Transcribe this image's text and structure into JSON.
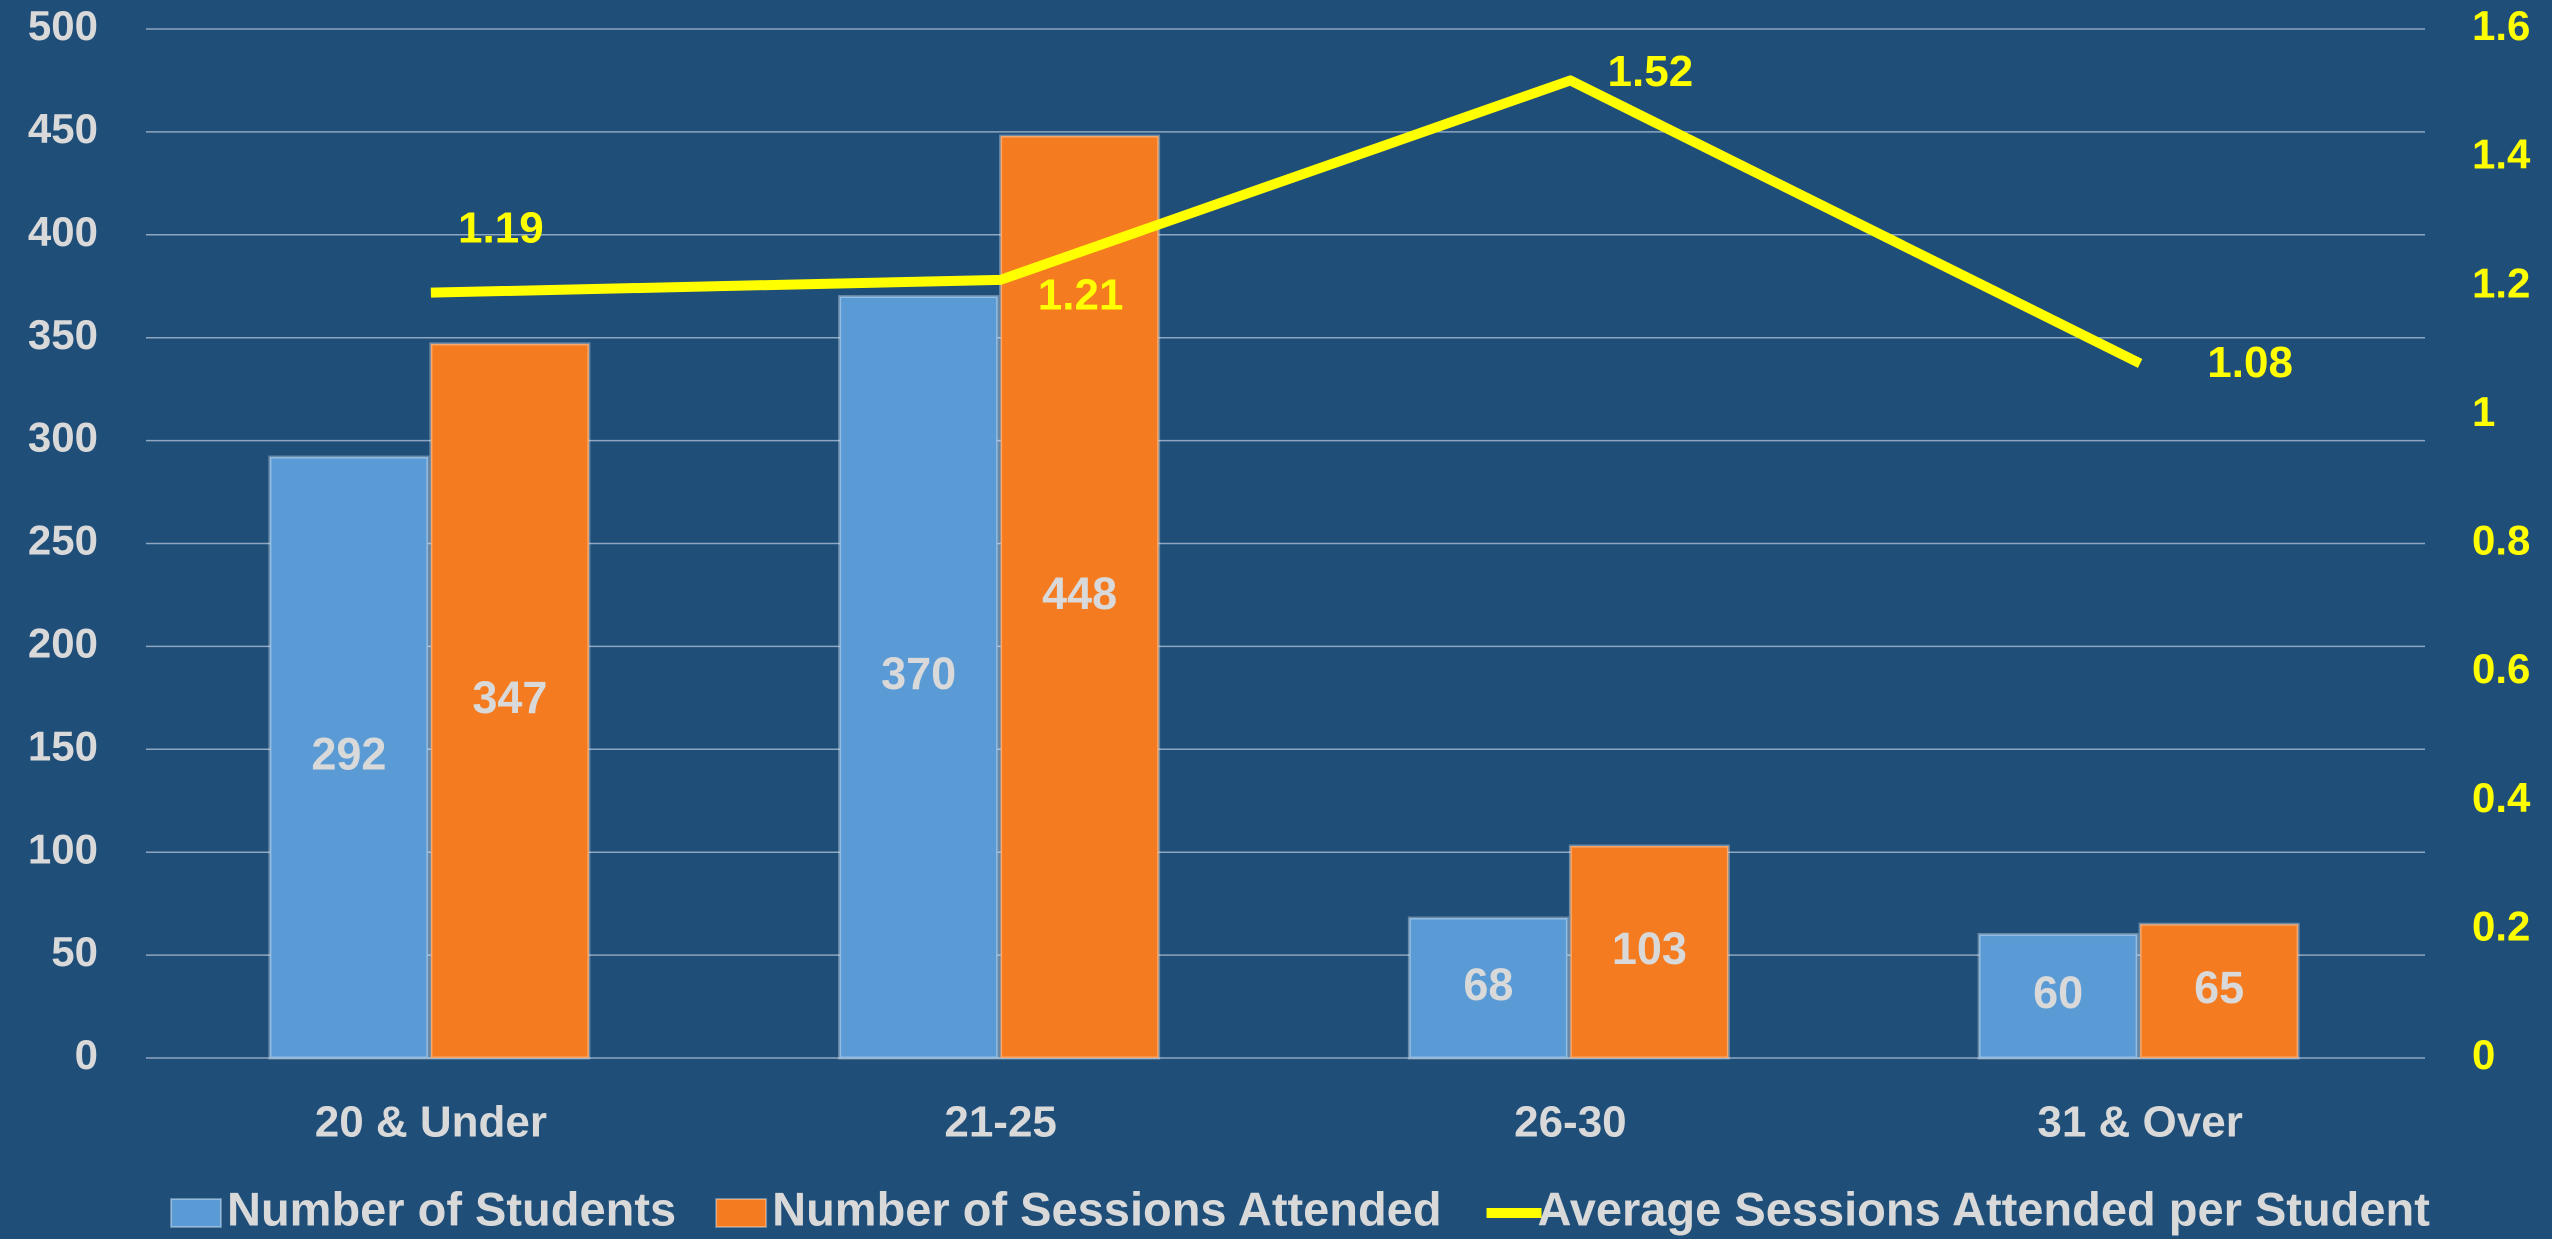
{
  "chart_data": {
    "type": "bar",
    "categories": [
      "20 & Under",
      "21-25",
      "26-30",
      "31 & Over"
    ],
    "series": [
      {
        "name": "Number of Students",
        "color": "#5b9bd5",
        "values": [
          292,
          370,
          68,
          60
        ]
      },
      {
        "name": "Number of Sessions Attended",
        "color": "#f47b20",
        "values": [
          347,
          448,
          103,
          65
        ]
      },
      {
        "name": "Average Sessions Attended per Student",
        "color": "#ffff00",
        "type": "line",
        "axis": "y2",
        "values": [
          1.19,
          1.21,
          1.52,
          1.08
        ]
      }
    ],
    "ylim": [
      0,
      500
    ],
    "yticks": [
      0,
      50,
      100,
      150,
      200,
      250,
      300,
      350,
      400,
      450,
      500
    ],
    "y2lim": [
      0,
      1.6
    ],
    "y2ticks": [
      0,
      0.2,
      0.4,
      0.6,
      0.8,
      1,
      1.2,
      1.4,
      1.6
    ],
    "grid": true,
    "legend": "bottom"
  }
}
